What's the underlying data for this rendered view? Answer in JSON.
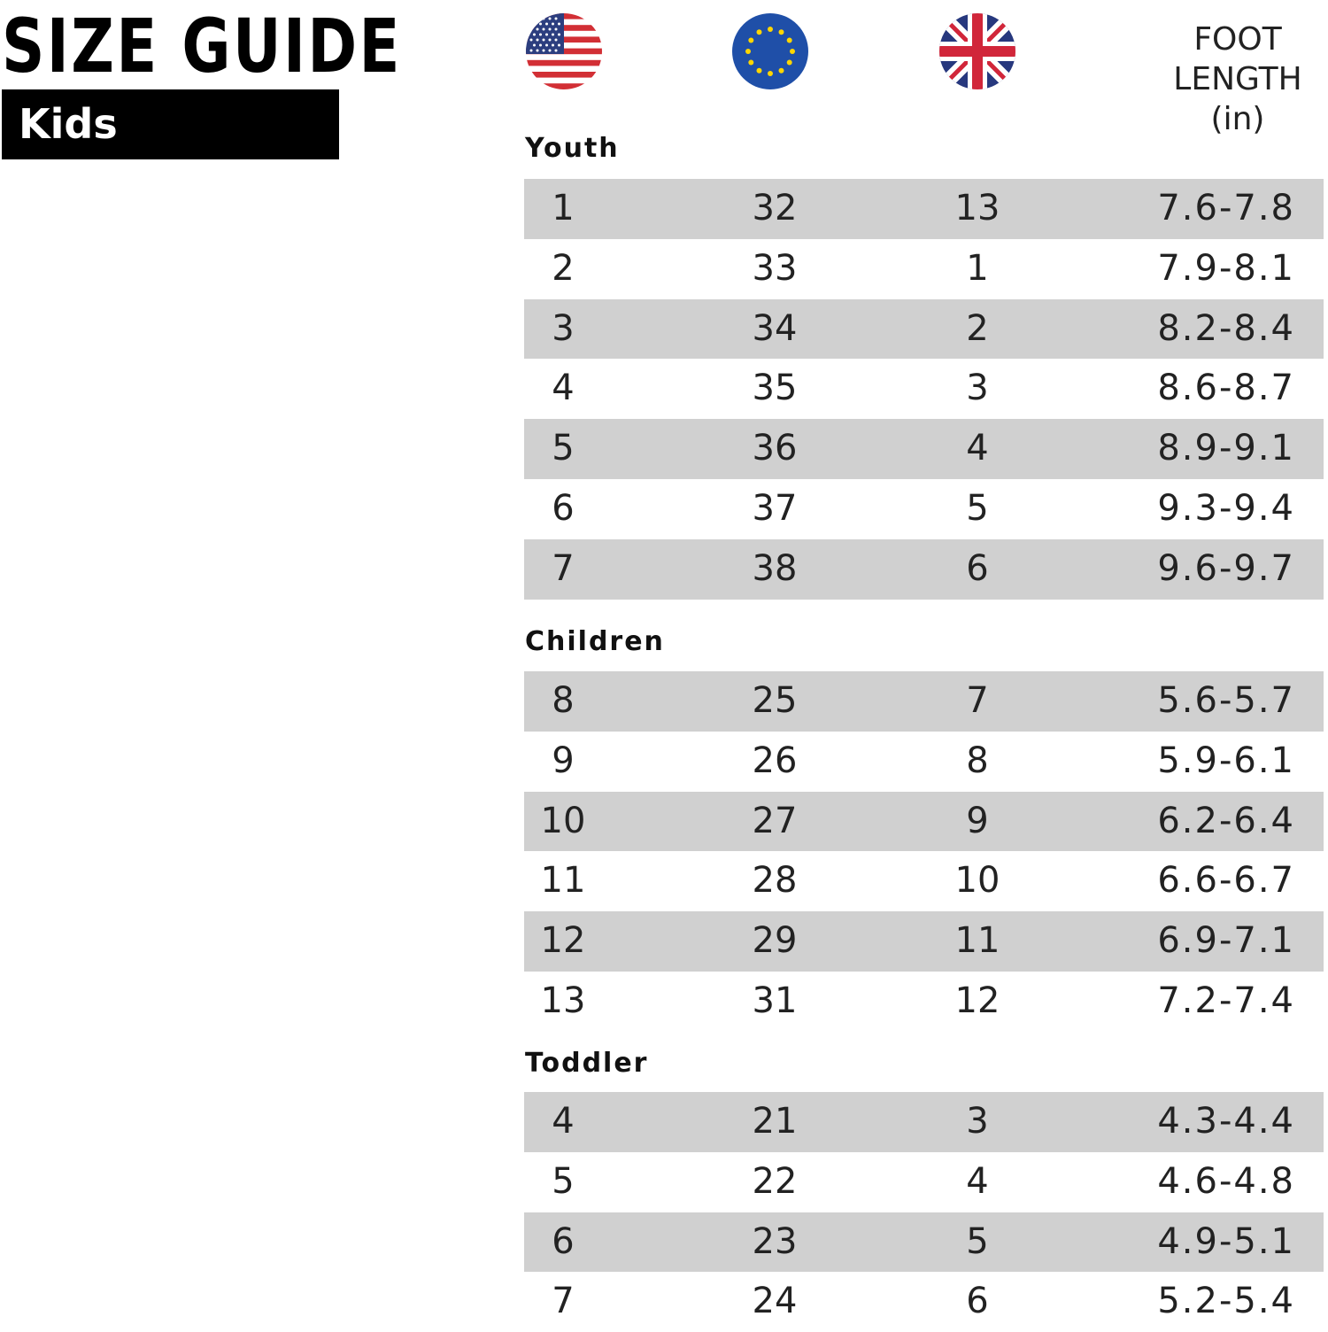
{
  "header": {
    "title": "SIZE GUIDE",
    "subtitle": "Kids"
  },
  "columns": {
    "flags": [
      "us-flag",
      "eu-flag",
      "uk-flag"
    ],
    "foot_length": [
      "FOOT",
      "LENGTH",
      "(in)"
    ]
  },
  "sections": [
    {
      "label": "Youth",
      "rows": [
        {
          "us": "1",
          "eu": "32",
          "uk": "13",
          "foot": "7.6-7.8"
        },
        {
          "us": "2",
          "eu": "33",
          "uk": "1",
          "foot": "7.9-8.1"
        },
        {
          "us": "3",
          "eu": "34",
          "uk": "2",
          "foot": "8.2-8.4"
        },
        {
          "us": "4",
          "eu": "35",
          "uk": "3",
          "foot": "8.6-8.7"
        },
        {
          "us": "5",
          "eu": "36",
          "uk": "4",
          "foot": "8.9-9.1"
        },
        {
          "us": "6",
          "eu": "37",
          "uk": "5",
          "foot": "9.3-9.4"
        },
        {
          "us": "7",
          "eu": "38",
          "uk": "6",
          "foot": "9.6-9.7"
        }
      ]
    },
    {
      "label": "Children",
      "rows": [
        {
          "us": "8",
          "eu": "25",
          "uk": "7",
          "foot": "5.6-5.7"
        },
        {
          "us": "9",
          "eu": "26",
          "uk": "8",
          "foot": "5.9-6.1"
        },
        {
          "us": "10",
          "eu": "27",
          "uk": "9",
          "foot": "6.2-6.4"
        },
        {
          "us": "11",
          "eu": "28",
          "uk": "10",
          "foot": "6.6-6.7"
        },
        {
          "us": "12",
          "eu": "29",
          "uk": "11",
          "foot": "6.9-7.1"
        },
        {
          "us": "13",
          "eu": "31",
          "uk": "12",
          "foot": "7.2-7.4"
        }
      ]
    },
    {
      "label": "Toddler",
      "rows": [
        {
          "us": "4",
          "eu": "21",
          "uk": "3",
          "foot": "4.3-4.4"
        },
        {
          "us": "5",
          "eu": "22",
          "uk": "4",
          "foot": "4.6-4.8"
        },
        {
          "us": "6",
          "eu": "23",
          "uk": "5",
          "foot": "4.9-5.1"
        },
        {
          "us": "7",
          "eu": "24",
          "uk": "6",
          "foot": "5.2-5.4"
        }
      ]
    }
  ],
  "colors": {
    "text": "#1a1a1a",
    "shaded_row": "#d0d0d0",
    "subtitle_bg": "#000000"
  }
}
